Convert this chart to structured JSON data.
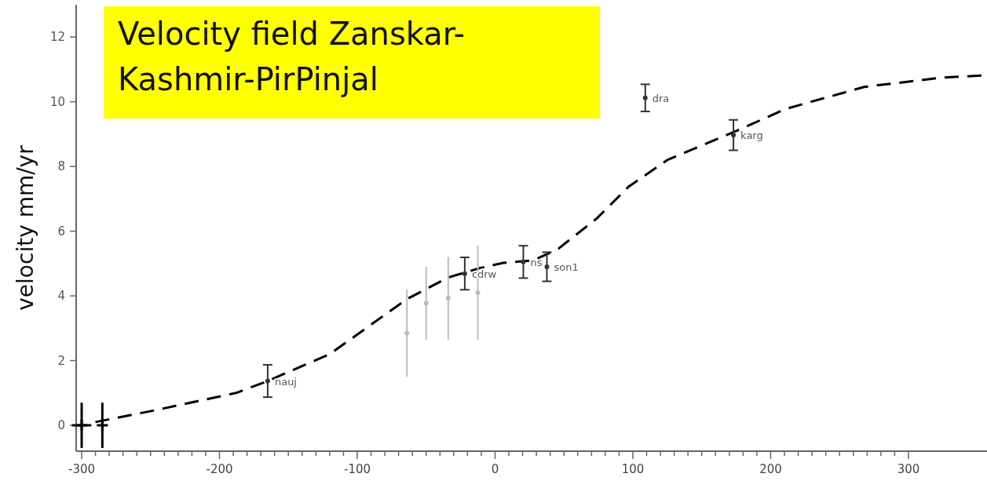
{
  "chart_data": {
    "type": "scatter",
    "title": "Velocity field Zanskar-\nKashmir-PirPinjal",
    "ylabel": "velocity mm/yr",
    "xlim": [
      -304,
      357
    ],
    "ylim": [
      -0.8,
      13
    ],
    "xticks": [
      -300,
      {
        "value": -290,
        "label": null
      },
      {
        "value": -280,
        "label": null
      },
      {
        "value": -270,
        "label": null
      },
      {
        "value": -260,
        "label": null
      },
      {
        "value": -250,
        "label": null
      },
      {
        "value": -240,
        "label": null
      },
      {
        "value": -230,
        "label": null
      },
      {
        "value": -220,
        "label": null
      },
      {
        "value": -210,
        "label": null
      },
      -200,
      {
        "value": -190,
        "label": null
      },
      {
        "value": -180,
        "label": null
      },
      {
        "value": -170,
        "label": null
      },
      {
        "value": -160,
        "label": null
      },
      {
        "value": -150,
        "label": null
      },
      {
        "value": -140,
        "label": null
      },
      {
        "value": -130,
        "label": null
      },
      {
        "value": -120,
        "label": null
      },
      {
        "value": -110,
        "label": null
      },
      -100,
      {
        "value": -90,
        "label": null
      },
      {
        "value": -80,
        "label": null
      },
      {
        "value": -70,
        "label": null
      },
      {
        "value": -60,
        "label": null
      },
      {
        "value": -50,
        "label": null
      },
      {
        "value": -40,
        "label": null
      },
      {
        "value": -30,
        "label": null
      },
      {
        "value": -20,
        "label": null
      },
      {
        "value": -10,
        "label": null
      },
      0,
      {
        "value": 10,
        "label": null
      },
      {
        "value": 20,
        "label": null
      },
      {
        "value": 30,
        "label": null
      },
      {
        "value": 40,
        "label": null
      },
      {
        "value": 50,
        "label": null
      },
      {
        "value": 60,
        "label": null
      },
      {
        "value": 70,
        "label": null
      },
      {
        "value": 80,
        "label": null
      },
      {
        "value": 90,
        "label": null
      },
      100,
      {
        "value": 110,
        "label": null
      },
      {
        "value": 120,
        "label": null
      },
      {
        "value": 130,
        "label": null
      },
      {
        "value": 140,
        "label": null
      },
      {
        "value": 150,
        "label": null
      },
      {
        "value": 160,
        "label": null
      },
      {
        "value": 170,
        "label": null
      },
      {
        "value": 180,
        "label": null
      },
      {
        "value": 190,
        "label": null
      },
      200,
      {
        "value": 210,
        "label": null
      },
      {
        "value": 220,
        "label": null
      },
      {
        "value": 230,
        "label": null
      },
      {
        "value": 240,
        "label": null
      },
      {
        "value": 250,
        "label": null
      },
      {
        "value": 260,
        "label": null
      },
      {
        "value": 270,
        "label": null
      },
      {
        "value": 280,
        "label": null
      },
      {
        "value": 290,
        "label": null
      },
      300
    ],
    "yticks": [
      0,
      2,
      4,
      6,
      8,
      10,
      12
    ],
    "grid": false,
    "marker": "circle",
    "series": [
      {
        "type": "line",
        "color": "#000000",
        "line_style": "dashed",
        "marker": "none",
        "x": [
          -290,
          -245,
          -188,
          -165,
          -120,
          -64,
          -34,
          -11,
          6,
          28,
          46,
          74,
          97,
          125,
          173,
          211,
          268,
          325,
          357
        ],
        "values": [
          0.1,
          0.48,
          1.0,
          1.37,
          2.2,
          3.9,
          4.57,
          4.86,
          5.02,
          5.1,
          5.46,
          6.4,
          7.38,
          8.2,
          9.06,
          9.78,
          10.46,
          10.75,
          10.82
        ]
      },
      {
        "color": "#bbbbbb",
        "x": [
          -64,
          -50,
          -34,
          -12.5
        ],
        "values": [
          2.85,
          3.78,
          3.93,
          4.1
        ],
        "errors": [
          [
            1.5,
            4.2
          ],
          [
            2.65,
            4.9
          ],
          [
            2.65,
            5.2
          ],
          [
            2.65,
            5.55
          ]
        ]
      },
      {
        "color": "#000000",
        "marker": "cross",
        "x": [
          -300,
          -285
        ],
        "values": [
          0,
          0
        ],
        "errors": [
          0.7,
          0.7
        ],
        "xerrors": [
          7,
          null
        ]
      },
      {
        "color": "#333333",
        "x": [
          -165,
          -22,
          20.5,
          37.6,
          109,
          173
        ],
        "values": [
          1.37,
          4.69,
          5.05,
          4.9,
          10.12,
          8.97
        ],
        "errors": [
          0.5,
          0.5,
          0.5,
          0.45,
          0.42,
          0.47
        ]
      }
    ],
    "annotations": [
      {
        "text": "nauj",
        "x": -165,
        "y": 1.37
      },
      {
        "text": "cdrw",
        "x": -22,
        "y": 4.69
      },
      {
        "text": "ns",
        "x": 20.5,
        "y": 5.05
      },
      {
        "text": "son1",
        "x": 37.6,
        "y": 4.9
      },
      {
        "text": "dra",
        "x": 109,
        "y": 10.12
      },
      {
        "text": "karg",
        "x": 173,
        "y": 8.97
      }
    ]
  }
}
